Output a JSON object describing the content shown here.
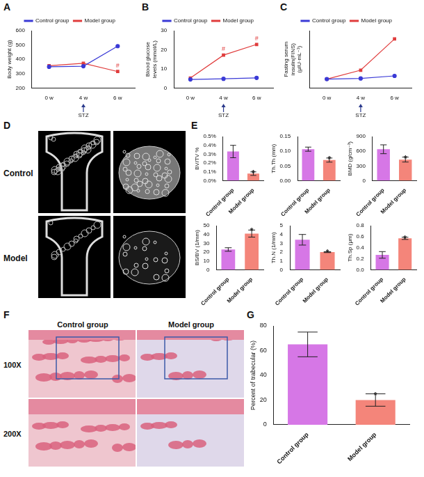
{
  "chart_data": [
    {
      "panel": "A",
      "type": "line",
      "y_label": "Body weight (g)",
      "categories": [
        "0 w",
        "4 w",
        "6 w"
      ],
      "series": [
        {
          "name": "Control group",
          "color": "#3a3ad6",
          "marker": "circle",
          "values": [
            348,
            352,
            492
          ]
        },
        {
          "name": "Model group",
          "color": "#e03c3c",
          "marker": "square",
          "values": [
            355,
            372,
            315
          ]
        }
      ],
      "annotations": [
        {
          "series": "Model group",
          "category": "6 w",
          "text": "#"
        }
      ],
      "arrow_annotation": {
        "category": "4 w",
        "text": "STZ"
      },
      "ylim": [
        200,
        600
      ],
      "yticks": [
        200,
        300,
        400,
        500,
        600
      ],
      "grid": false,
      "legend": "top"
    },
    {
      "panel": "B",
      "type": "line",
      "y_label": "Blood glucose levels (mmol/L)",
      "categories": [
        "0 w",
        "4 w",
        "6 w"
      ],
      "series": [
        {
          "name": "Control group",
          "color": "#3a3ad6",
          "marker": "circle",
          "values": [
            4.5,
            4.8,
            5.3
          ]
        },
        {
          "name": "Model group",
          "color": "#e03c3c",
          "marker": "square",
          "values": [
            5.2,
            17.2,
            22.8
          ]
        }
      ],
      "annotations": [
        {
          "series": "Model group",
          "category": "4 w",
          "text": "#"
        },
        {
          "series": "Model group",
          "category": "6 w",
          "text": "#"
        }
      ],
      "arrow_annotation": {
        "category": "4 w",
        "text": "STZ"
      },
      "ylim": [
        0,
        30
      ],
      "yticks": [
        0,
        10,
        20,
        30
      ],
      "grid": false,
      "legend": "top"
    },
    {
      "panel": "C",
      "type": "line",
      "y_label": "Fasting serum insulin(FINS) (μIU·mL⁻¹)",
      "categories": [
        "0 w",
        "4 w",
        "6 w"
      ],
      "series": [
        {
          "name": "Control group",
          "color": "#3a3ad6",
          "marker": "circle",
          "values": [
            4.2,
            4.25,
            4.45
          ]
        },
        {
          "name": "Model group",
          "color": "#e03c3c",
          "marker": "square",
          "values": [
            4.2,
            4.9,
            7.35
          ]
        }
      ],
      "arrow_annotation": {
        "category": "4 w",
        "text": "STZ"
      },
      "ylim": [
        3.5,
        8
      ],
      "tick_labels": "x",
      "grid": false,
      "legend": "top"
    },
    {
      "panel": "E",
      "type": "bar",
      "y_label": "BV/TV %",
      "categories": [
        "Control group",
        "Model group"
      ],
      "colors": [
        "#d677e6",
        "#f4857a"
      ],
      "values": [
        0.33,
        0.08
      ],
      "errors": [
        0.07,
        0.02
      ],
      "annotations": [
        {
          "category": "Model group",
          "text": "*"
        }
      ],
      "ylim": [
        0,
        0.5
      ],
      "yticks": [
        {
          "value": 0,
          "label": "0.0%"
        },
        {
          "value": 0.1,
          "label": "0.1%"
        },
        {
          "value": 0.2,
          "label": "0.2%"
        },
        {
          "value": 0.3,
          "label": "0.3%"
        },
        {
          "value": 0.4,
          "label": "0.4%"
        },
        {
          "value": 0.5,
          "label": "0.5%"
        }
      ],
      "grid": false
    },
    {
      "panel": "E",
      "type": "bar",
      "y_label": "Th.Th (mm)",
      "categories": [
        "Control group",
        "Model group"
      ],
      "colors": [
        "#d677e6",
        "#f4857a"
      ],
      "values": [
        0.107,
        0.07
      ],
      "errors": [
        0.007,
        0.007
      ],
      "annotations": [
        {
          "category": "Model group",
          "text": "*"
        }
      ],
      "ylim": [
        0,
        0.15
      ],
      "yticks": [
        {
          "value": 0,
          "label": "0.00"
        },
        0.05,
        {
          "value": 0.1,
          "label": "0.10"
        },
        0.15
      ],
      "grid": false
    },
    {
      "panel": "E",
      "type": "bar",
      "y_label": "BMD (g/cm⁻³)",
      "categories": [
        "Control group",
        "Model group"
      ],
      "colors": [
        "#d677e6",
        "#f4857a"
      ],
      "values": [
        640,
        430
      ],
      "errors": [
        90,
        50
      ],
      "annotations": [
        {
          "category": "Model group",
          "text": "*"
        }
      ],
      "ylim": [
        0,
        900
      ],
      "yticks": [
        0,
        300,
        600,
        900
      ],
      "grid": false
    },
    {
      "panel": "E",
      "type": "bar",
      "y_label": "BS/BV (1/mm)",
      "categories": [
        "Control group",
        "Model group"
      ],
      "colors": [
        "#d677e6",
        "#f4857a"
      ],
      "values": [
        23,
        41
      ],
      "errors": [
        2,
        4
      ],
      "annotations": [
        {
          "category": "Model group",
          "text": "*"
        }
      ],
      "ylim": [
        0,
        50
      ],
      "yticks": [
        0,
        10,
        20,
        30,
        40,
        50
      ],
      "grid": false
    },
    {
      "panel": "E",
      "type": "bar",
      "y_label": "Th.N (1/mm)",
      "categories": [
        "Control group",
        "Model group"
      ],
      "colors": [
        "#d677e6",
        "#f4857a"
      ],
      "values": [
        3.4,
        2.0
      ],
      "errors": [
        0.6,
        0.05
      ],
      "annotations": [
        {
          "category": "Model group",
          "text": "*"
        }
      ],
      "ylim": [
        0,
        5
      ],
      "yticks": [
        0,
        1,
        2,
        3,
        4,
        5
      ],
      "grid": false
    },
    {
      "panel": "E",
      "type": "bar",
      "y_label": "Th.Sp (μm)",
      "categories": [
        "Control group",
        "Model group"
      ],
      "colors": [
        "#d677e6",
        "#f4857a"
      ],
      "values": [
        0.27,
        0.57
      ],
      "errors": [
        0.06,
        0.02
      ],
      "annotations": [
        {
          "category": "Model group",
          "text": "*"
        }
      ],
      "ylim": [
        0,
        0.8
      ],
      "yticks": [
        {
          "value": 0,
          "label": "0.0"
        },
        0.2,
        0.4,
        0.6,
        0.8
      ],
      "grid": false
    },
    {
      "panel": "G",
      "type": "bar",
      "y_label": "Percent of trabecular (%)",
      "categories": [
        "Control group",
        "Model group"
      ],
      "colors": [
        "#d677e6",
        "#f4857a"
      ],
      "values": [
        65,
        20
      ],
      "errors": [
        10,
        5
      ],
      "annotations": [
        {
          "category": "Model group",
          "text": "*"
        }
      ],
      "ylim": [
        0,
        80
      ],
      "yticks": [
        0,
        20,
        40,
        60,
        80
      ],
      "grid": false
    }
  ],
  "images": [
    {
      "panel": "D",
      "row_labels": [
        "Control",
        "Model"
      ]
    },
    {
      "panel": "F",
      "column_labels": [
        "Control group",
        "Model group"
      ],
      "row_labels": [
        "100X",
        "200X"
      ]
    }
  ]
}
